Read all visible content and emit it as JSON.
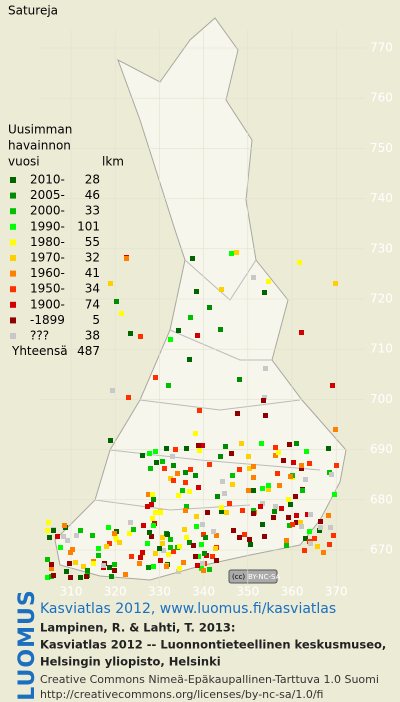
{
  "title": "Satureja",
  "legend": {
    "heading": [
      "Uusimman",
      "havainnon",
      "vuosi"
    ],
    "count_heading": "lkm",
    "rows": [
      {
        "label": "2010-",
        "count": 28,
        "color": "#006400"
      },
      {
        "label": "2005-",
        "count": 46,
        "color": "#008c00"
      },
      {
        "label": "2000-",
        "count": 33,
        "color": "#00c000"
      },
      {
        "label": "1990-",
        "count": 101,
        "color": "#00ff00"
      },
      {
        "label": "1980-",
        "count": 55,
        "color": "#ffff00"
      },
      {
        "label": "1970-",
        "count": 32,
        "color": "#ffd000"
      },
      {
        "label": "1960-",
        "count": 41,
        "color": "#ff8000"
      },
      {
        "label": "1950-",
        "count": 34,
        "color": "#ff3000"
      },
      {
        "label": "1900-",
        "count": 74,
        "color": "#d00000"
      },
      {
        "label": "-1899",
        "count": 5,
        "color": "#900000"
      },
      {
        "label": "???",
        "count": 38,
        "color": "#c8c8c8"
      }
    ],
    "total_label": "Yhteensä",
    "total": 487
  },
  "northing_ticks": [
    770,
    760,
    750,
    740,
    730,
    720,
    710,
    700,
    690,
    680,
    670
  ],
  "easting_ticks": [
    310,
    320,
    330,
    340,
    350,
    360,
    370
  ],
  "license_badge": "BY-NC-SA",
  "footer": {
    "logo": "LUOMUS",
    "link": "Kasviatlas 2012, www.luomus.fi/kasviatlas",
    "citation": [
      "Lampinen, R. & Lahti, T. 2013:",
      "Kasviatlas 2012 -- Luonnontieteellinen keskusmuseo,",
      "Helsingin yliopisto, Helsinki"
    ],
    "license": [
      "Creative Commons Nimeä-Epäkaupallinen-Tarttuva 1.0 Suomi",
      "http://creativecommons.org/licenses/by-nc-sa/1.0/fi"
    ]
  }
}
